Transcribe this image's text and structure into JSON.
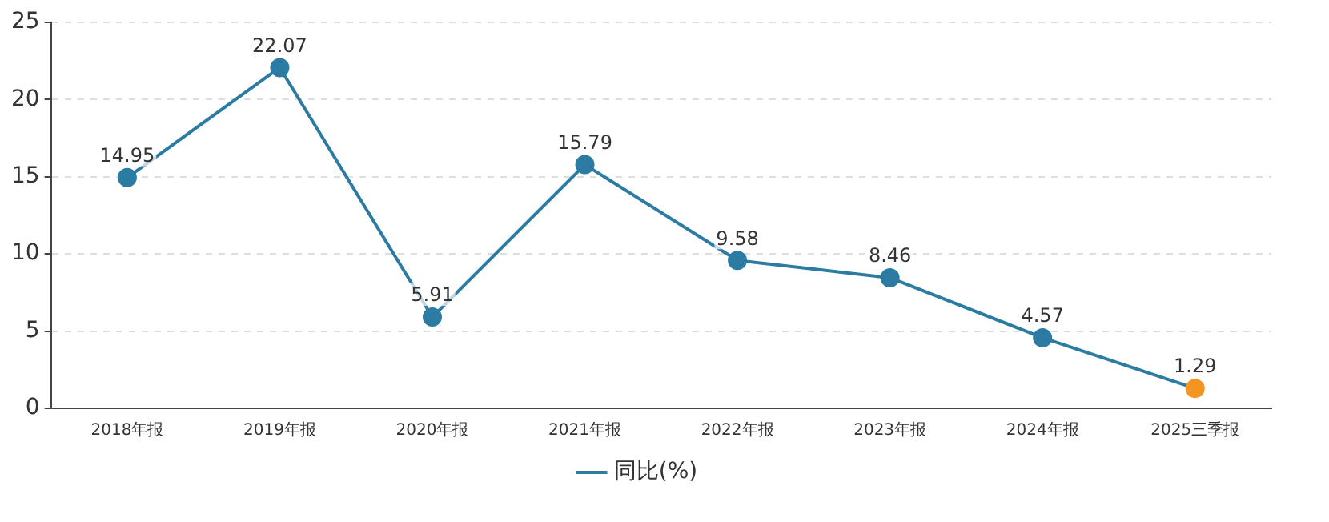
{
  "chart_data": {
    "type": "line",
    "categories": [
      "2018年报",
      "2019年报",
      "2020年报",
      "2021年报",
      "2022年报",
      "2023年报",
      "2024年报",
      "2025三季报"
    ],
    "series": [
      {
        "name": "同比(%)",
        "color": "#2b7ba3",
        "colors": [
          "#2b7ba3",
          "#2b7ba3",
          "#2b7ba3",
          "#2b7ba3",
          "#2b7ba3",
          "#2b7ba3",
          "#2b7ba3",
          "#f39423"
        ],
        "values": [
          14.95,
          22.07,
          5.91,
          15.79,
          9.58,
          8.46,
          4.57,
          1.29
        ]
      }
    ],
    "ylim": [
      0,
      25
    ],
    "yticks": [
      0,
      5,
      10,
      15,
      20,
      25
    ],
    "grid": "y",
    "legend": "bottom",
    "marker": "circle",
    "line_style": "solid",
    "data_labels": true
  }
}
